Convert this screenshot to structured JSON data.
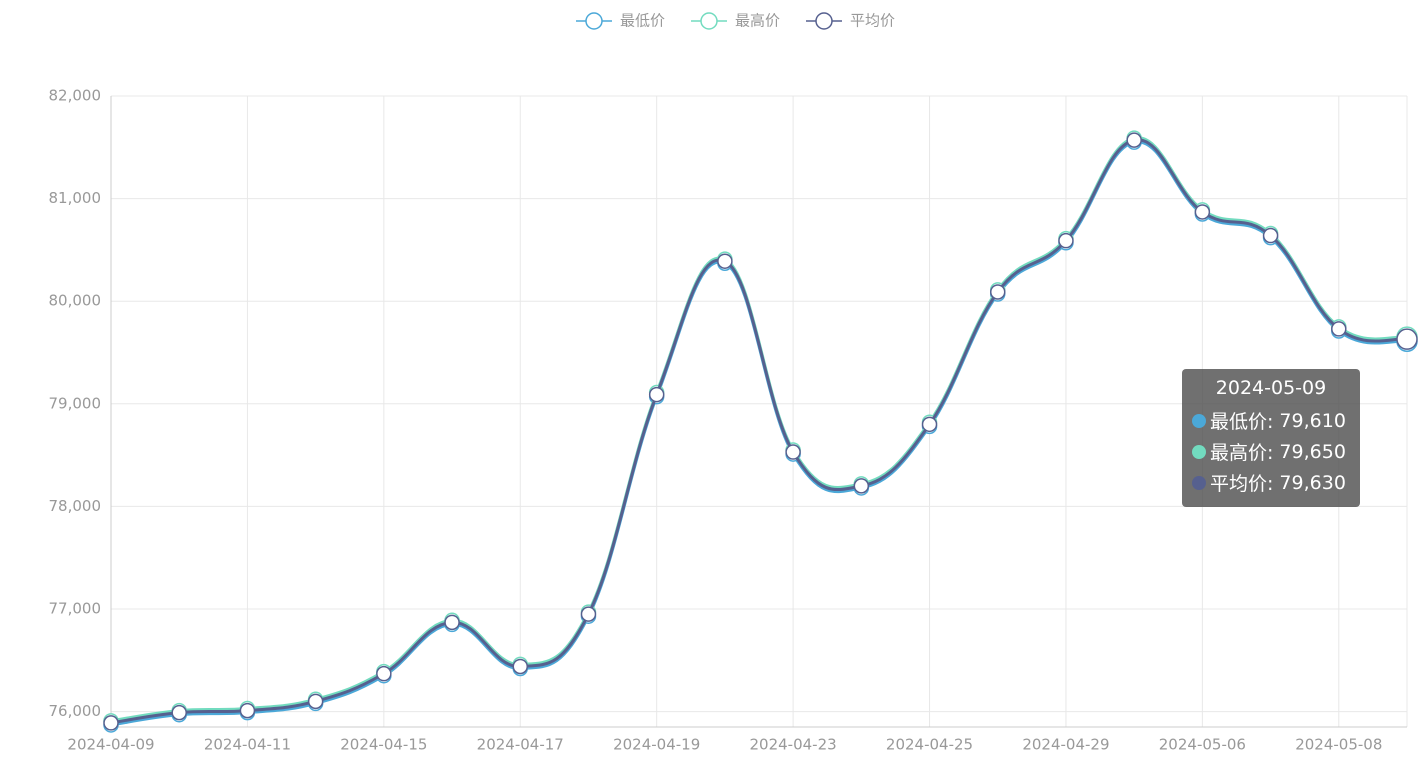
{
  "chart_data": {
    "type": "line",
    "categories": [
      "2024-04-09",
      null,
      "2024-04-11",
      null,
      "2024-04-15",
      null,
      "2024-04-17",
      null,
      "2024-04-19",
      null,
      "2024-04-23",
      null,
      "2024-04-25",
      null,
      "2024-04-29",
      null,
      "2024-05-06",
      null,
      "2024-05-08",
      "2024-05-09"
    ],
    "series": [
      {
        "name": "最低价",
        "color": "#4ba8d8",
        "values": [
          75870,
          75970,
          75990,
          76080,
          76350,
          76850,
          76420,
          76930,
          79070,
          80370,
          78510,
          78180,
          78780,
          80070,
          80570,
          81550,
          80850,
          80620,
          79710,
          79610
        ],
        "value_labels": [
          null,
          null,
          null,
          null,
          null,
          null,
          null,
          null,
          null,
          null,
          null,
          null,
          null,
          null,
          null,
          null,
          null,
          null,
          null,
          "79,610"
        ]
      },
      {
        "name": "最高价",
        "color": "#72dbbf",
        "values": [
          75910,
          76010,
          76030,
          76120,
          76390,
          76890,
          76460,
          76970,
          79110,
          80410,
          78550,
          78220,
          78820,
          80110,
          80610,
          81590,
          80890,
          80660,
          79750,
          79650
        ],
        "value_labels": [
          null,
          null,
          null,
          null,
          null,
          null,
          null,
          null,
          null,
          null,
          null,
          null,
          null,
          null,
          null,
          null,
          null,
          null,
          null,
          "79,650"
        ]
      },
      {
        "name": "平均价",
        "color": "#56608f",
        "values": [
          75890,
          75990,
          76010,
          76100,
          76370,
          76870,
          76440,
          76950,
          79090,
          80390,
          78530,
          78200,
          78800,
          80090,
          80590,
          81570,
          80870,
          80640,
          79730,
          79630
        ],
        "value_labels": [
          null,
          null,
          null,
          null,
          null,
          null,
          null,
          null,
          null,
          null,
          null,
          null,
          null,
          null,
          null,
          null,
          null,
          null,
          null,
          "79,630"
        ]
      }
    ],
    "ylim": [
      75850,
      82000
    ],
    "yticks": [
      {
        "value": 76000,
        "label": "76,000"
      },
      {
        "value": 77000,
        "label": "77,000"
      },
      {
        "value": 78000,
        "label": "78,000"
      },
      {
        "value": 79000,
        "label": "79,000"
      },
      {
        "value": 80000,
        "label": "80,000"
      },
      {
        "value": 81000,
        "label": "81,000"
      },
      {
        "value": 82000,
        "label": "82,000"
      }
    ],
    "grid": true,
    "legend": "top",
    "smooth": true
  }
}
